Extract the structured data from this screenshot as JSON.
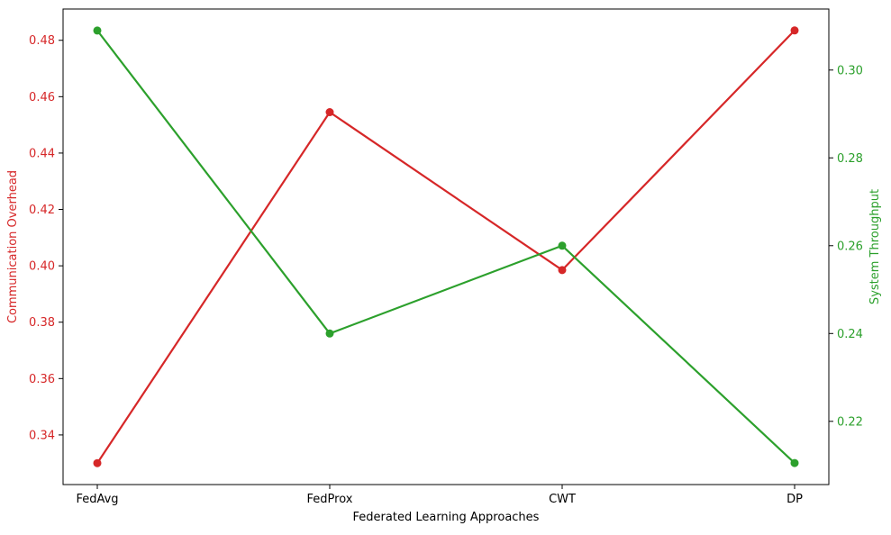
{
  "chart_data": {
    "type": "line",
    "categories": [
      "FedAvg",
      "FedProx",
      "CWT",
      "DP"
    ],
    "xlabel": "Federated Learning Approaches",
    "grid": false,
    "series": [
      {
        "name": "Communication Overhead",
        "axis": "left",
        "color": "#d62728",
        "values": [
          0.33,
          0.4545,
          0.3985,
          0.4835
        ]
      },
      {
        "name": "System Throughput",
        "axis": "right",
        "color": "#2ca02c",
        "values": [
          0.309,
          0.24,
          0.26,
          0.2105
        ]
      }
    ],
    "y_left": {
      "label": "Communication Overhead",
      "color": "#d62728",
      "ticks": [
        "0.34",
        "0.36",
        "0.38",
        "0.40",
        "0.42",
        "0.44",
        "0.46",
        "0.48"
      ],
      "tick_values": [
        0.34,
        0.36,
        0.38,
        0.4,
        0.42,
        0.44,
        0.46,
        0.48
      ],
      "ylim": [
        0.3224,
        0.4911
      ]
    },
    "y_right": {
      "label": "System Throughput",
      "color": "#2ca02c",
      "ticks": [
        "0.22",
        "0.24",
        "0.26",
        "0.28",
        "0.30"
      ],
      "tick_values": [
        0.22,
        0.24,
        0.26,
        0.28,
        0.3
      ],
      "ylim": [
        0.2056,
        0.3139
      ]
    }
  }
}
